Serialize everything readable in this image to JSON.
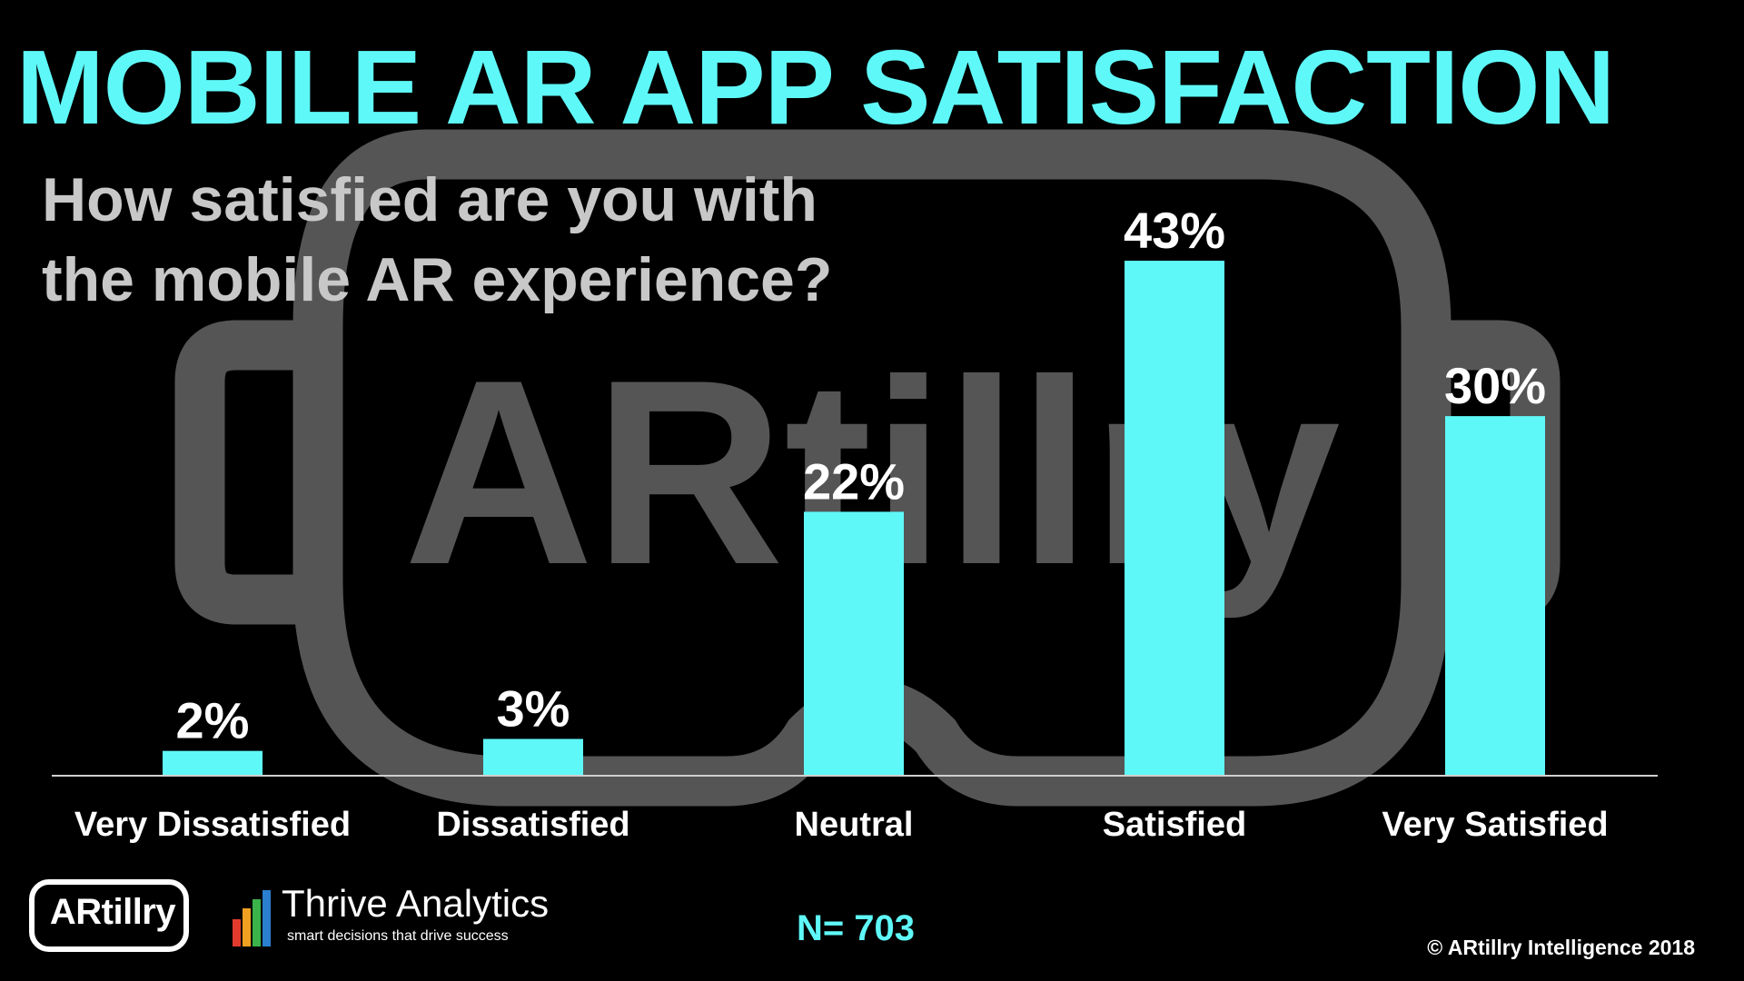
{
  "title": "MOBILE AR APP SATISFACTION",
  "subtitle_lines": [
    "How satisfied are you with",
    "the mobile AR experience?"
  ],
  "watermark_text": "ARtillry",
  "sample_size": "N= 703",
  "logos": {
    "artillry": "ARtillry",
    "thrive_name": "Thrive Analytics",
    "thrive_tagline": "smart decisions that drive success"
  },
  "copyright": "© ARtillry Intelligence 2018",
  "colors": {
    "bar": "#5ff8f8",
    "title": "#5ff8f8",
    "subtitle": "#c8c8c8",
    "watermark": "#555555",
    "background": "#000000"
  },
  "chart_data": {
    "type": "bar",
    "title": "MOBILE AR APP SATISFACTION",
    "subtitle": "How satisfied are you with the mobile AR experience?",
    "categories": [
      "Very Dissatisfied",
      "Dissatisfied",
      "Neutral",
      "Satisfied",
      "Very Satisfied"
    ],
    "values": [
      2,
      3,
      22,
      43,
      30
    ],
    "value_labels": [
      "2%",
      "3%",
      "22%",
      "43%",
      "30%"
    ],
    "unit": "%",
    "ylim": [
      0,
      43
    ],
    "xlabel": "",
    "ylabel": "",
    "grid": false,
    "legend": "none"
  }
}
